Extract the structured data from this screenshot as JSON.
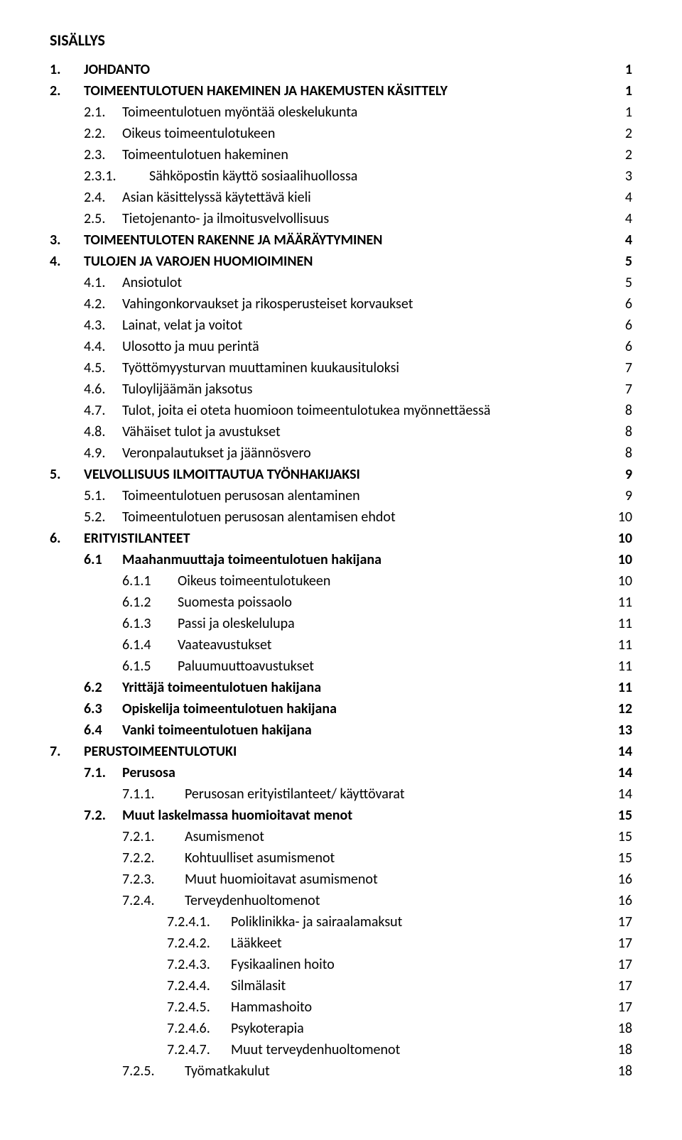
{
  "title": "SISÄLLYS",
  "rows": [
    {
      "level": "lvl1",
      "bold": true,
      "num": "1.",
      "label": "JOHDANTO",
      "page": "1"
    },
    {
      "level": "lvl1",
      "bold": true,
      "num": "2.",
      "label": "TOIMEENTULOTUEN HAKEMINEN JA HAKEMUSTEN KÄSITTELY",
      "page": "1"
    },
    {
      "level": "lvl2",
      "bold": false,
      "num": "2.1.",
      "label": "Toimeentulotuen myöntää oleskelukunta",
      "page": "1"
    },
    {
      "level": "lvl2",
      "bold": false,
      "num": "2.2.",
      "label": "Oikeus toimeentulotukeen",
      "page": "2"
    },
    {
      "level": "lvl2",
      "bold": false,
      "num": "2.3.",
      "label": "Toimeentulotuen hakeminen",
      "page": "2"
    },
    {
      "level": "lvl2b",
      "bold": false,
      "num": "2.3.1.",
      "label": "Sähköpostin käyttö sosiaalihuollossa",
      "page": "3"
    },
    {
      "level": "lvl2",
      "bold": false,
      "num": "2.4.",
      "label": "Asian käsittelyssä käytettävä kieli",
      "page": "4"
    },
    {
      "level": "lvl2",
      "bold": false,
      "num": "2.5.",
      "label": "Tietojenanto- ja ilmoitusvelvollisuus",
      "page": "4"
    },
    {
      "level": "lvl1",
      "bold": true,
      "num": "3.",
      "label": "TOIMEENTULOTEN RAKENNE JA MÄÄRÄYTYMINEN",
      "page": "4"
    },
    {
      "level": "lvl1",
      "bold": true,
      "num": "4.",
      "label": "TULOJEN JA VAROJEN HUOMIOIMINEN",
      "page": "5"
    },
    {
      "level": "lvl2",
      "bold": false,
      "num": "4.1.",
      "label": "Ansiotulot",
      "page": "5"
    },
    {
      "level": "lvl2",
      "bold": false,
      "num": "4.2.",
      "label": "Vahingonkorvaukset ja rikosperusteiset korvaukset",
      "page": "6"
    },
    {
      "level": "lvl2",
      "bold": false,
      "num": "4.3.",
      "label": "Lainat, velat ja voitot",
      "page": "6"
    },
    {
      "level": "lvl2",
      "bold": false,
      "num": "4.4.",
      "label": "Ulosotto ja muu perintä",
      "page": "6"
    },
    {
      "level": "lvl2",
      "bold": false,
      "num": "4.5.",
      "label": "Työttömyysturvan muuttaminen kuukausituloksi",
      "page": "7"
    },
    {
      "level": "lvl2",
      "bold": false,
      "num": "4.6.",
      "label": "Tuloylijäämän jaksotus",
      "page": "7"
    },
    {
      "level": "lvl2",
      "bold": false,
      "num": "4.7.",
      "label": "Tulot, joita ei oteta huomioon toimeentulotukea myönnettäessä",
      "page": "8"
    },
    {
      "level": "lvl2",
      "bold": false,
      "num": "4.8.",
      "label": "Vähäiset tulot ja avustukset",
      "page": "8"
    },
    {
      "level": "lvl2",
      "bold": false,
      "num": "4.9.",
      "label": "Veronpalautukset ja jäännösvero",
      "page": "8"
    },
    {
      "level": "lvl1",
      "bold": true,
      "num": "5.",
      "label": "VELVOLLISUUS ILMOITTAUTUA TYÖNHAKIJAKSI",
      "page": "9"
    },
    {
      "level": "lvl2",
      "bold": false,
      "num": "5.1.",
      "label": "Toimeentulotuen perusosan alentaminen",
      "page": "9"
    },
    {
      "level": "lvl2",
      "bold": false,
      "num": "5.2.",
      "label": "Toimeentulotuen perusosan alentamisen ehdot",
      "page": "10"
    },
    {
      "level": "lvl1",
      "bold": true,
      "num": "6.",
      "label": "ERITYISTILANTEET",
      "page": "10"
    },
    {
      "level": "lvl2",
      "bold": true,
      "num": "6.1",
      "label": "Maahanmuuttaja toimeentulotuen hakijana",
      "page": "10"
    },
    {
      "level": "lvl3",
      "bold": false,
      "num": "6.1.1",
      "label": "Oikeus toimeentulotukeen",
      "page": "10"
    },
    {
      "level": "lvl3",
      "bold": false,
      "num": "6.1.2",
      "label": "Suomesta poissaolo",
      "page": "11"
    },
    {
      "level": "lvl3",
      "bold": false,
      "num": "6.1.3",
      "label": "Passi ja oleskelulupa",
      "page": "11"
    },
    {
      "level": "lvl3",
      "bold": false,
      "num": "6.1.4",
      "label": "Vaateavustukset",
      "page": "11"
    },
    {
      "level": "lvl3",
      "bold": false,
      "num": "6.1.5",
      "label": "Paluumuuttoavustukset",
      "page": "11"
    },
    {
      "level": "lvl2",
      "bold": true,
      "num": "6.2",
      "label": "Yrittäjä toimeentulotuen hakijana",
      "page": "11"
    },
    {
      "level": "lvl2",
      "bold": true,
      "num": "6.3",
      "label": "Opiskelija toimeentulotuen hakijana",
      "page": "12"
    },
    {
      "level": "lvl2",
      "bold": true,
      "num": "6.4",
      "label": "Vanki toimeentulotuen hakijana",
      "page": "13"
    },
    {
      "level": "lvl1",
      "bold": true,
      "num": "7.",
      "label": "PERUSTOIMEENTULOTUKI",
      "page": "14"
    },
    {
      "level": "lvl2",
      "bold": true,
      "num": "7.1.",
      "label": "Perusosa",
      "page": "14"
    },
    {
      "level": "lvl3b",
      "bold": false,
      "num": "7.1.1.",
      "label": "Perusosan erityistilanteet/ käyttövarat",
      "page": "14"
    },
    {
      "level": "lvl2",
      "bold": true,
      "num": "7.2.",
      "label": "Muut laskelmassa huomioitavat menot",
      "page": "15"
    },
    {
      "level": "lvl3b",
      "bold": false,
      "num": "7.2.1.",
      "label": "Asumismenot",
      "page": "15"
    },
    {
      "level": "lvl3b",
      "bold": false,
      "num": "7.2.2.",
      "label": "Kohtuulliset asumismenot",
      "page": "15"
    },
    {
      "level": "lvl3b",
      "bold": false,
      "num": "7.2.3.",
      "label": "Muut huomioitavat asumismenot",
      "page": "16"
    },
    {
      "level": "lvl3b",
      "bold": false,
      "num": "7.2.4.",
      "label": "Terveydenhuoltomenot",
      "page": "16"
    },
    {
      "level": "lvl4",
      "bold": false,
      "num": "7.2.4.1.",
      "label": "Poliklinikka- ja sairaalamaksut",
      "page": "17"
    },
    {
      "level": "lvl4",
      "bold": false,
      "num": "7.2.4.2.",
      "label": "Lääkkeet",
      "page": "17"
    },
    {
      "level": "lvl4",
      "bold": false,
      "num": "7.2.4.3.",
      "label": "Fysikaalinen hoito",
      "page": "17"
    },
    {
      "level": "lvl4",
      "bold": false,
      "num": "7.2.4.4.",
      "label": "Silmälasit",
      "page": "17"
    },
    {
      "level": "lvl4",
      "bold": false,
      "num": "7.2.4.5.",
      "label": "Hammashoito",
      "page": "17"
    },
    {
      "level": "lvl4",
      "bold": false,
      "num": "7.2.4.6.",
      "label": "Psykoterapia",
      "page": "18"
    },
    {
      "level": "lvl4",
      "bold": false,
      "num": "7.2.4.7.",
      "label": "Muut terveydenhuoltomenot",
      "page": "18"
    },
    {
      "level": "lvl3b",
      "bold": false,
      "num": "7.2.5.",
      "label": "Työmatkakulut",
      "page": "18"
    }
  ]
}
